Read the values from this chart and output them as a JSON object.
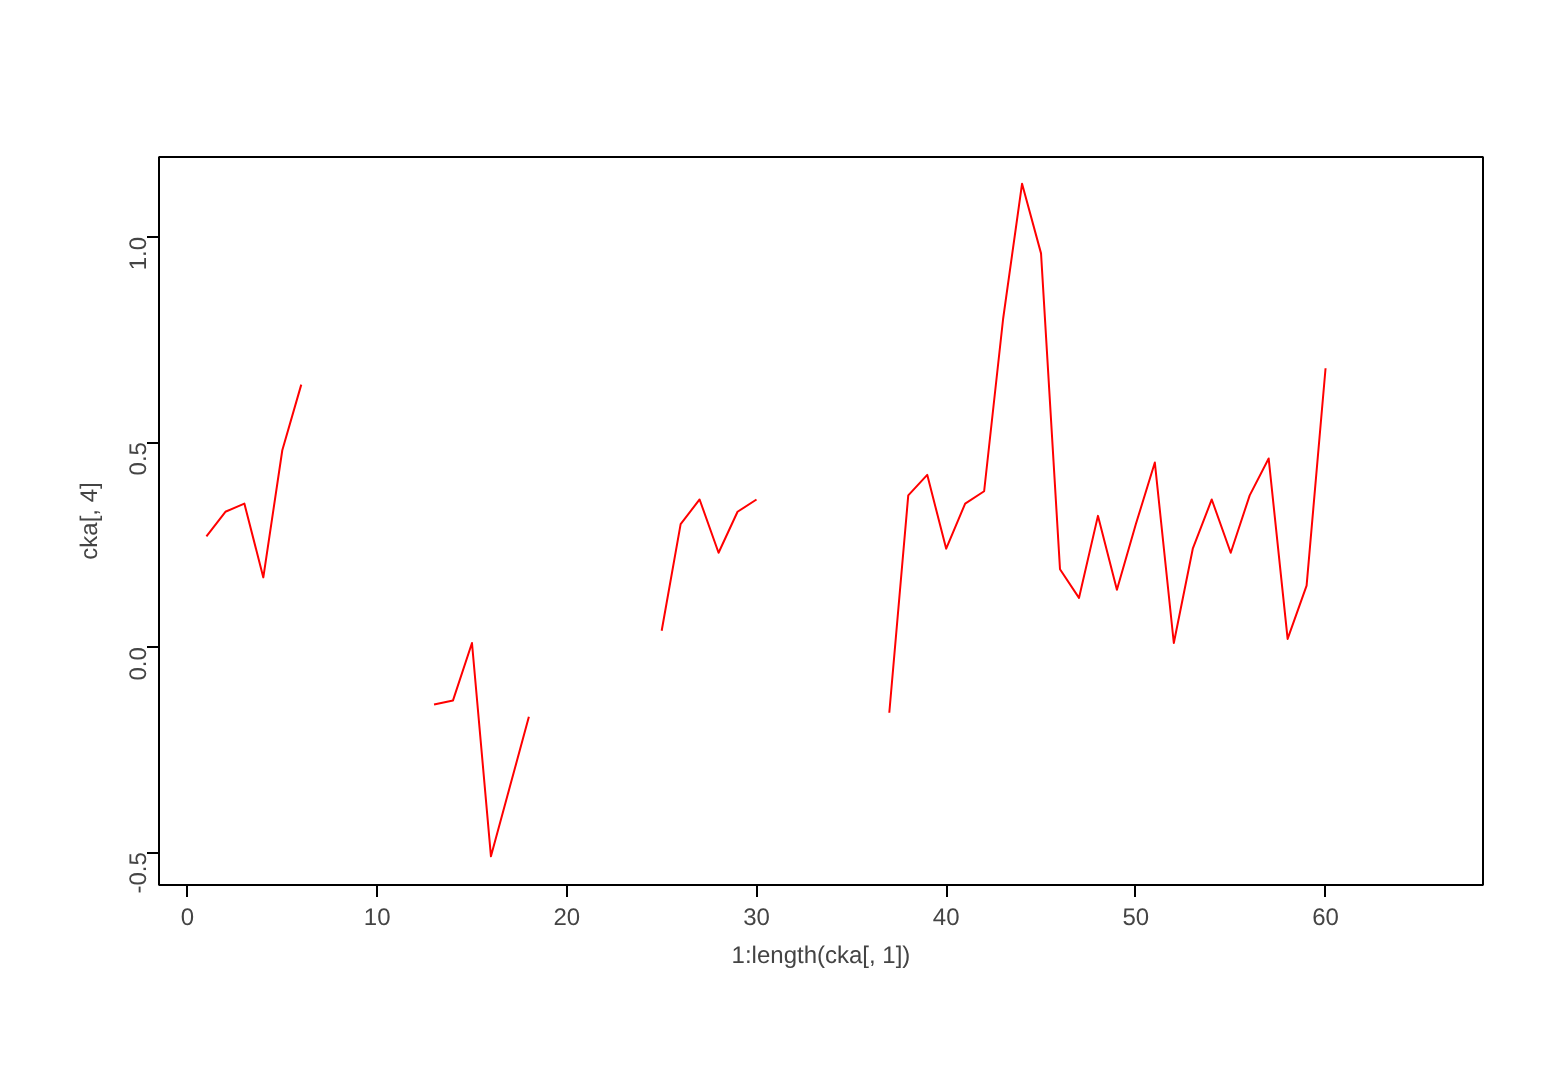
{
  "chart_data": {
    "type": "line",
    "xlabel": "1:length(cka[, 1])",
    "ylabel": "cka[, 4]",
    "x": [
      1,
      2,
      3,
      4,
      5,
      6,
      7,
      8,
      9,
      10,
      11,
      12,
      13,
      14,
      15,
      16,
      17,
      18,
      19,
      20,
      21,
      22,
      23,
      24,
      25,
      26,
      27,
      28,
      29,
      30,
      31,
      32,
      33,
      34,
      35,
      36,
      37,
      38,
      39,
      40,
      41,
      42,
      43,
      44,
      45,
      46,
      47,
      48,
      49,
      50,
      51,
      52,
      53,
      54,
      55,
      56,
      57,
      58,
      59,
      60
    ],
    "series": [
      {
        "color": "#ff0000",
        "values": [
          0.27,
          0.33,
          0.35,
          0.17,
          0.48,
          0.64,
          null,
          null,
          null,
          null,
          null,
          null,
          -0.14,
          -0.13,
          0.01,
          -0.51,
          -0.34,
          -0.17,
          null,
          null,
          null,
          null,
          null,
          null,
          0.04,
          0.3,
          0.36,
          0.23,
          0.33,
          0.36,
          null,
          null,
          null,
          null,
          null,
          null,
          -0.16,
          0.37,
          0.42,
          0.24,
          0.35,
          0.38,
          0.8,
          1.13,
          0.96,
          0.19,
          0.12,
          0.32,
          0.14,
          0.3,
          0.45,
          0.01,
          0.24,
          0.36,
          0.23,
          0.37,
          0.46,
          0.02,
          0.15,
          0.68
        ]
      }
    ],
    "xlim": [
      -1.5,
      68.3
    ],
    "ylim": [
      -0.58,
      1.195
    ],
    "xticks": [
      0,
      10,
      20,
      30,
      40,
      50,
      60
    ],
    "yticks": [
      {
        "value": -0.5,
        "label": "-0.5"
      },
      {
        "value": 0,
        "label": "0.0"
      },
      {
        "value": 0.5,
        "label": "0.5"
      },
      {
        "value": 1.0,
        "label": "1.0"
      }
    ],
    "grid": false,
    "line_style": "solid",
    "marker": "none"
  }
}
